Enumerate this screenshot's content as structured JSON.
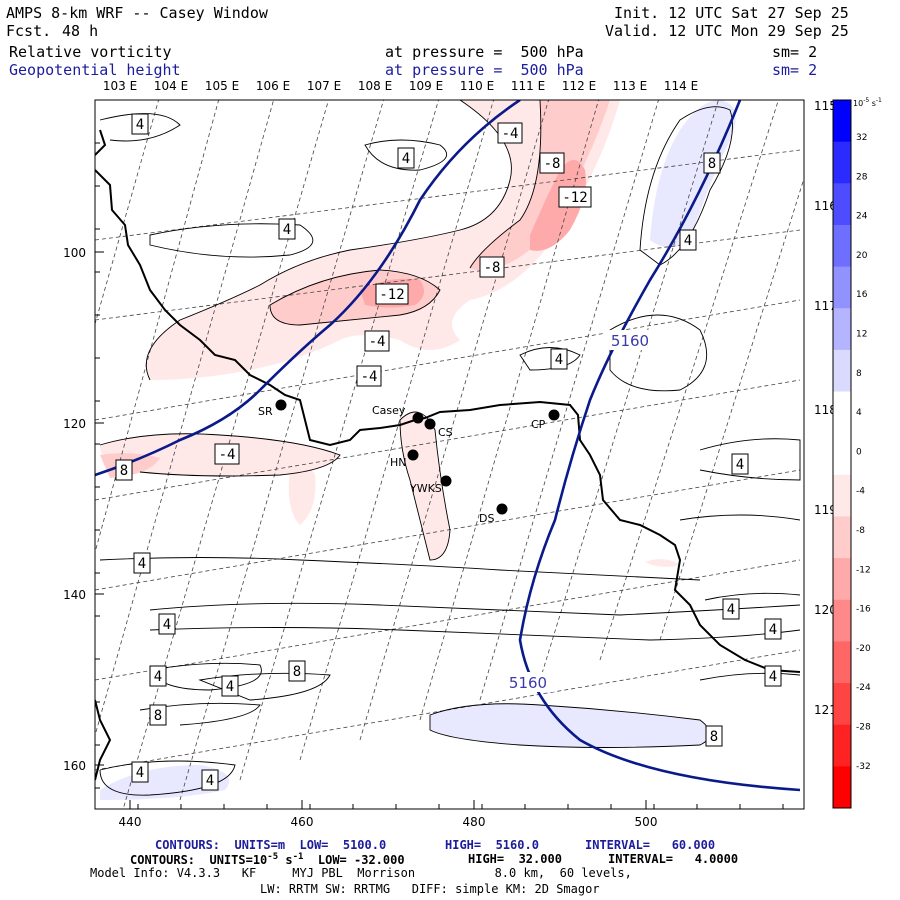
{
  "header": {
    "model": "AMPS 8-km WRF -- Casey Window",
    "fcst_label": "Fcst.",
    "fcst_value": "48 h",
    "init": "Init. 12 UTC Sat 27 Sep 25",
    "valid": "Valid. 12 UTC Mon 29 Sep 25",
    "field1": "Relative vorticity",
    "field2": "Geopotential height",
    "level1": "at pressure =  500 hPa",
    "level2": "at pressure =  500 hPa",
    "sm1": "sm= 2",
    "sm2": "sm= 2"
  },
  "lon_labels_top": [
    "103 E",
    "104 E",
    "105 E",
    "106 E",
    "107 E",
    "108 E",
    "109 E",
    "110 E",
    "111 E",
    "112 E",
    "113 E",
    "114 E"
  ],
  "lon_labels_right": [
    "115 E",
    "116 E",
    "117 E",
    "118 E",
    "119 E",
    "120 E",
    "121 E"
  ],
  "axes": {
    "x_ticks": [
      "440",
      "460",
      "480",
      "500"
    ],
    "y_ticks": [
      "100",
      "120",
      "140",
      "160"
    ]
  },
  "stations": [
    {
      "name": "SR"
    },
    {
      "name": "Casey"
    },
    {
      "name": "CS"
    },
    {
      "name": "HN"
    },
    {
      "name": "YWKS"
    },
    {
      "name": "CP"
    },
    {
      "name": "DS"
    }
  ],
  "contour_labels": [
    "4",
    "-4",
    "-8",
    "-12",
    "4",
    "8",
    "4",
    "-8",
    "-12",
    "-4",
    "-4",
    "4",
    "8",
    "-4",
    "4",
    "4",
    "4",
    "4",
    "4",
    "4",
    "4",
    "4",
    "4",
    "8",
    "8",
    "8",
    "4",
    "4",
    "4"
  ],
  "height_labels": [
    "5160",
    "5160"
  ],
  "colorbar": {
    "units": "10^-5 s^-1",
    "units_base": "10",
    "units_exp": "-5",
    "units_tail": " s",
    "units_tail_exp": "-1",
    "values": [
      "32",
      "28",
      "24",
      "20",
      "16",
      "12",
      "8",
      "4",
      "0",
      "-4",
      "-8",
      "-12",
      "-16",
      "-20",
      "-24",
      "-28",
      "-32"
    ],
    "colors": [
      "#0000ff",
      "#2b2bff",
      "#4d4dff",
      "#6e6eff",
      "#9292ff",
      "#b5b5ff",
      "#dadaff",
      "#ffffff",
      "#ffffff",
      "#ffe8e8",
      "#ffcccc",
      "#ffaaaa",
      "#ff8888",
      "#ff6666",
      "#ff4444",
      "#ff2222",
      "#ff0000"
    ]
  },
  "footer": {
    "line1_a": "CONTOURS:  UNITS=m  LOW=  5100.0",
    "line1_b": "HIGH=  5160.0",
    "line1_c": "INTERVAL=   60.000",
    "line2_a": "CONTOURS:  UNITS=10",
    "line2_exp": "-5",
    "line2_b": " s",
    "line2_exp2": "-1",
    "line2_c": "  LOW= -32.000",
    "line2_d": "HIGH=  32.000",
    "line2_e": "INTERVAL=   4.0000",
    "model_info": "Model Info: V4.3.3   KF     MYJ PBL  Morrison           8.0 km,  60 levels,",
    "model_info2": "LW: RRTM SW: RRTMG   DIFF: simple KM: 2D Smagor"
  }
}
